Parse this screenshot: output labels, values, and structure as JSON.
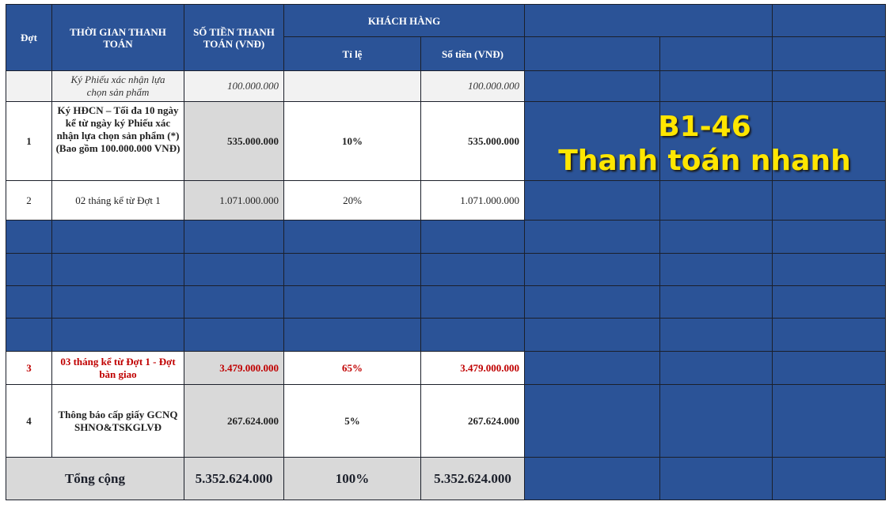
{
  "header": {
    "dot": "Đợt",
    "time": "THỜI GIAN THANH TOÁN",
    "amount": "SỐ TIỀN THANH TOÁN (VNĐ)",
    "customer": "KHÁCH HÀNG",
    "ratio": "Tỉ lệ",
    "customer_amount": "Số tiền (VNĐ)"
  },
  "rows": [
    {
      "dot": "",
      "time": "Ký Phiếu xác nhận lựa chọn sản phẩm",
      "amount": "100.000.000",
      "ratio": "",
      "customer_amount": "100.000.000"
    },
    {
      "dot": "1",
      "time": "Ký HĐCN – Tối đa 10 ngày kể từ ngày ký Phiếu xác nhận lựa chọn sản phẩm (*) (Bao gồm 100.000.000 VNĐ)",
      "amount": "535.000.000",
      "ratio": "10%",
      "customer_amount": "535.000.000"
    },
    {
      "dot": "2",
      "time": "02 tháng kể từ Đợt 1",
      "amount": "1.071.000.000",
      "ratio": "20%",
      "customer_amount": "1.071.000.000"
    },
    {
      "dot": "3",
      "time": "03 tháng kể từ Đợt 1 - Đợt bàn giao",
      "amount": "3.479.000.000",
      "ratio": "65%",
      "customer_amount": "3.479.000.000"
    },
    {
      "dot": "4",
      "time": "Thông báo cấp giấy GCNQSHNO&TSKGLVĐ",
      "amount": "267.624.000",
      "ratio": "5%",
      "customer_amount": "267.624.000"
    }
  ],
  "total": {
    "label": "Tổng cộng",
    "amount": "5.352.624.000",
    "ratio": "100%",
    "customer_amount": "5.352.624.000"
  },
  "overlay": {
    "code": "B1-46",
    "caption": "Thanh toán nhanh"
  },
  "colors": {
    "header_blue": "#2b5397",
    "highlight_red": "#c00000",
    "overlay_yellow": "#ffe600",
    "amount_grey": "#d9d9d9"
  }
}
